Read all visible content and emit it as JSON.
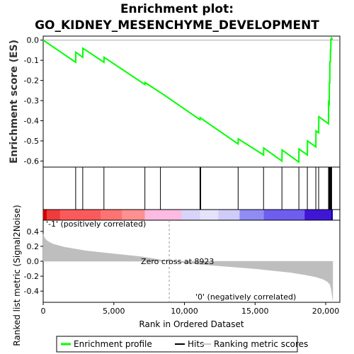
{
  "title_line1": "Enrichment plot:",
  "title_line2": "GO_KIDNEY_MESENCHYME_DEVELOPMENT",
  "chart_data": {
    "type": "line",
    "es_panel": {
      "ylabel": "Enrichment score (ES)",
      "yticks": [
        0.0,
        -0.1,
        -0.2,
        -0.3,
        -0.4,
        -0.5,
        -0.6
      ],
      "ylim": [
        -0.63,
        0.02
      ],
      "xlim": [
        0,
        21000
      ],
      "series": [
        {
          "name": "Enrichment profile",
          "color": "#00ff00",
          "x": [
            0,
            2300,
            2310,
            2800,
            2810,
            4300,
            4310,
            7200,
            7210,
            7300,
            8300,
            8310,
            11100,
            11110,
            13800,
            13810,
            15600,
            15610,
            16900,
            16910,
            18100,
            18110,
            18700,
            18710,
            19300,
            19310,
            19500,
            19510,
            20200,
            20210,
            20250,
            20260,
            20290,
            20300,
            20330,
            20340,
            20360,
            20370,
            20400,
            20420,
            20460,
            20500
          ],
          "y": [
            0.0,
            -0.11,
            -0.06,
            -0.085,
            -0.04,
            -0.11,
            -0.085,
            -0.22,
            -0.21,
            -0.215,
            -0.26,
            -0.26,
            -0.395,
            -0.385,
            -0.515,
            -0.49,
            -0.57,
            -0.535,
            -0.6,
            -0.545,
            -0.605,
            -0.54,
            -0.57,
            -0.5,
            -0.53,
            -0.45,
            -0.46,
            -0.38,
            -0.415,
            -0.31,
            -0.315,
            -0.21,
            -0.215,
            -0.105,
            -0.11,
            -0.05,
            -0.05,
            0.005,
            0.005,
            0.01,
            0.005,
            0.005
          ]
        }
      ]
    },
    "hits": [
      2300,
      2800,
      4300,
      7200,
      8300,
      11100,
      11150,
      13800,
      15600,
      16900,
      18100,
      18700,
      19300,
      19500,
      20200,
      20250,
      20290,
      20330,
      20360,
      20400,
      20420
    ],
    "colorbar": [
      {
        "from": 0,
        "to": 250,
        "color": "#d90000"
      },
      {
        "from": 250,
        "to": 1200,
        "color": "#ee3b3b"
      },
      {
        "from": 1200,
        "to": 4100,
        "color": "#fb5a5a"
      },
      {
        "from": 4100,
        "to": 5600,
        "color": "#fd7373"
      },
      {
        "from": 5600,
        "to": 7200,
        "color": "#fe9090"
      },
      {
        "from": 7200,
        "to": 9800,
        "color": "#fdbbe2"
      },
      {
        "from": 9800,
        "to": 11100,
        "color": "#d7d3fa"
      },
      {
        "from": 11100,
        "to": 12400,
        "color": "#e5e2fb"
      },
      {
        "from": 12400,
        "to": 13900,
        "color": "#d0ccf9"
      },
      {
        "from": 13900,
        "to": 15600,
        "color": "#8f8cf4"
      },
      {
        "from": 15600,
        "to": 18500,
        "color": "#6d5ef0"
      },
      {
        "from": 18500,
        "to": 20400,
        "color": "#3f16d6"
      },
      {
        "from": 20400,
        "to": 20500,
        "color": "#0000a0"
      }
    ],
    "metric_panel": {
      "ylabel": "Ranked list metric (Signal2Noise)",
      "yticks": [
        0.4,
        0.2,
        0.0,
        -0.2,
        -0.4
      ],
      "ylim": [
        -0.55,
        0.55
      ],
      "fill_color": "#bebebe",
      "x": [
        0,
        100,
        300,
        700,
        1500,
        3000,
        5000,
        7000,
        8923,
        11000,
        13000,
        15000,
        16500,
        17500,
        18500,
        19300,
        19800,
        20100,
        20300,
        20400,
        20450,
        20500
      ],
      "y": [
        0.36,
        0.31,
        0.27,
        0.23,
        0.19,
        0.14,
        0.1,
        0.06,
        0.0,
        -0.04,
        -0.07,
        -0.1,
        -0.13,
        -0.15,
        -0.18,
        -0.21,
        -0.24,
        -0.27,
        -0.31,
        -0.38,
        -0.45,
        -0.52
      ],
      "zero_cross": 8923,
      "zero_cross_label": "Zero cross at 8923",
      "pos_label": "'-1' (positively correlated)",
      "neg_label": "'0' (negatively correlated)"
    },
    "xlabel": "Rank in Ordered Dataset",
    "xticks": [
      0,
      5000,
      10000,
      15000,
      20000
    ],
    "xtick_labels": [
      "0",
      "5,000",
      "10,000",
      "15,000",
      "20,000"
    ],
    "legend": {
      "placement": "bottom",
      "items": [
        {
          "label": "Enrichment profile",
          "color": "#00ff00"
        },
        {
          "label": "Hits",
          "color": "#000000"
        },
        {
          "label": "Ranking metric scores",
          "color": "#c8c8c8"
        }
      ]
    }
  }
}
